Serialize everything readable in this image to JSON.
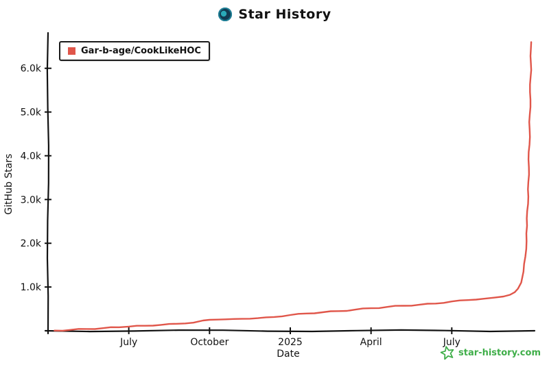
{
  "header": {
    "title": "Star History"
  },
  "legend": {
    "label": "Gar-b-age/CookLikeHOC",
    "swatch_color": "#e0564a"
  },
  "watermark": {
    "label": "star-history.com",
    "color": "#3fae49"
  },
  "chart_data": {
    "type": "line",
    "title": "Star History",
    "xlabel": "Date",
    "ylabel": "GitHub Stars",
    "grid": false,
    "legend_position": "top-left",
    "x_domain": [
      2024.25,
      2025.75
    ],
    "y_domain": [
      0,
      6700
    ],
    "x_ticks": [
      {
        "v": 2024.5,
        "label": "July"
      },
      {
        "v": 2024.75,
        "label": "October"
      },
      {
        "v": 2025.0,
        "label": "2025"
      },
      {
        "v": 2025.25,
        "label": "April"
      },
      {
        "v": 2025.5,
        "label": "July"
      }
    ],
    "y_ticks": [
      {
        "v": 1000,
        "label": "1.0k"
      },
      {
        "v": 2000,
        "label": "2.0k"
      },
      {
        "v": 3000,
        "label": "3.0k"
      },
      {
        "v": 4000,
        "label": "4.0k"
      },
      {
        "v": 5000,
        "label": "5.0k"
      },
      {
        "v": 6000,
        "label": "6.0k"
      }
    ],
    "series": [
      {
        "name": "Gar-b-age/CookLikeHOC",
        "color": "#e0564a",
        "points": [
          [
            2024.27,
            5
          ],
          [
            2024.32,
            20
          ],
          [
            2024.37,
            40
          ],
          [
            2024.42,
            60
          ],
          [
            2024.47,
            80
          ],
          [
            2024.5,
            95
          ],
          [
            2024.55,
            115
          ],
          [
            2024.6,
            135
          ],
          [
            2024.65,
            160
          ],
          [
            2024.7,
            185
          ],
          [
            2024.73,
            235
          ],
          [
            2024.75,
            250
          ],
          [
            2024.8,
            262
          ],
          [
            2024.85,
            272
          ],
          [
            2024.9,
            288
          ],
          [
            2024.95,
            315
          ],
          [
            2025.0,
            360
          ],
          [
            2025.05,
            395
          ],
          [
            2025.1,
            422
          ],
          [
            2025.15,
            450
          ],
          [
            2025.2,
            482
          ],
          [
            2025.25,
            515
          ],
          [
            2025.3,
            545
          ],
          [
            2025.35,
            572
          ],
          [
            2025.4,
            596
          ],
          [
            2025.45,
            622
          ],
          [
            2025.5,
            670
          ],
          [
            2025.55,
            702
          ],
          [
            2025.6,
            732
          ],
          [
            2025.63,
            756
          ],
          [
            2025.66,
            782
          ],
          [
            2025.68,
            822
          ],
          [
            2025.695,
            882
          ],
          [
            2025.705,
            962
          ],
          [
            2025.715,
            1100
          ],
          [
            2025.722,
            1350
          ],
          [
            2025.728,
            1700
          ],
          [
            2025.733,
            2400
          ],
          [
            2025.737,
            3400
          ],
          [
            2025.741,
            4600
          ],
          [
            2025.744,
            5800
          ],
          [
            2025.746,
            6600
          ]
        ]
      }
    ]
  }
}
